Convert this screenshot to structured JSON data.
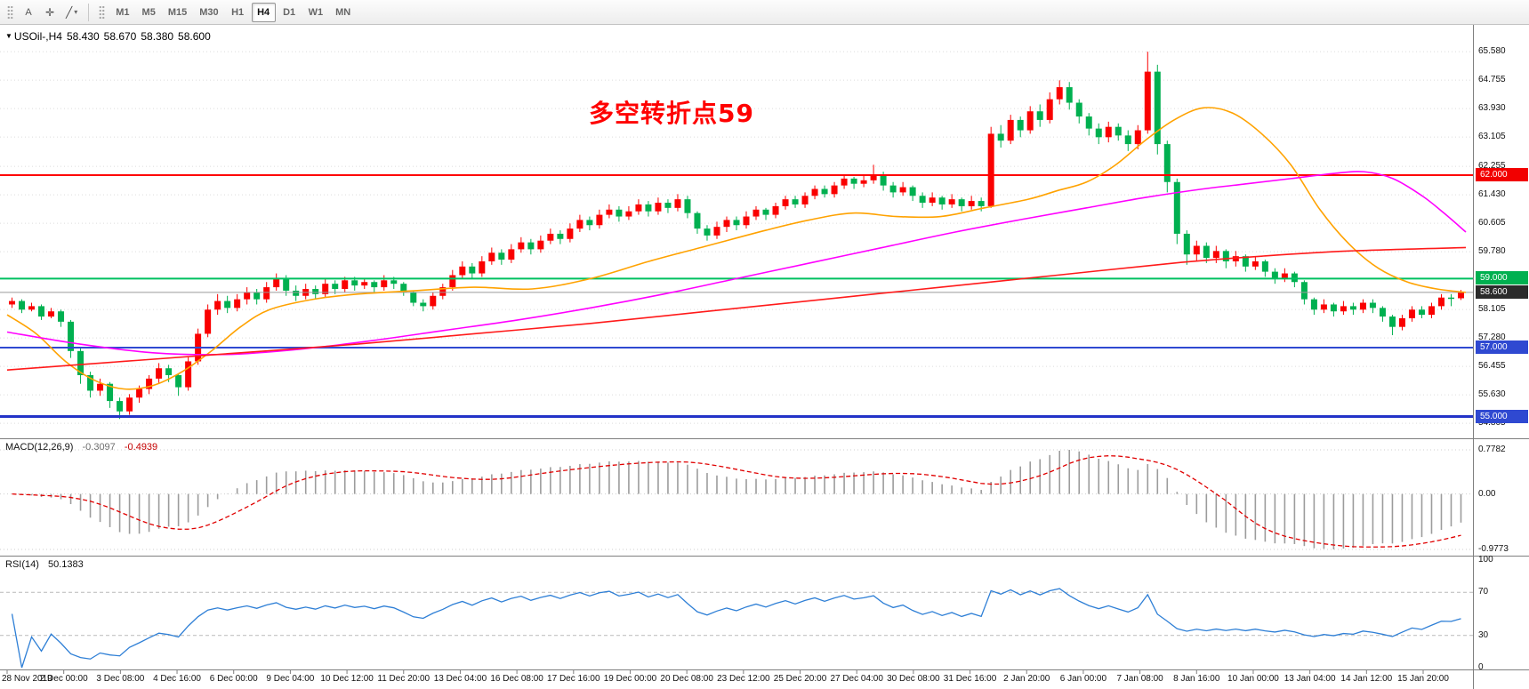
{
  "toolbar": {
    "font_tool_label": "A",
    "active_timeframe": "H4",
    "timeframes": [
      "M1",
      "M5",
      "M15",
      "M30",
      "H1",
      "H4",
      "D1",
      "W1",
      "MN"
    ]
  },
  "chart_data": {
    "type": "candlestick",
    "symbol": "USOil-",
    "timeframe": "H4",
    "header": {
      "symbol": "USOil-,H4",
      "open": "58.430",
      "high": "58.670",
      "low": "58.380",
      "close": "58.600"
    },
    "annotation": {
      "text": "多空转折点59",
      "color": "#ff0000"
    },
    "price_range": {
      "min": 54.55,
      "max": 66.15
    },
    "up_color": "#fa0000",
    "down_color": "#00b050",
    "price_axis_labels": [
      "65.580",
      "64.755",
      "63.930",
      "63.105",
      "62.255",
      "61.430",
      "60.605",
      "59.780",
      "58.105",
      "57.280",
      "56.455",
      "55.630",
      "54.805"
    ],
    "hlines": [
      {
        "price": 62.0,
        "color": "#ff0000",
        "width": 2,
        "badge": "62.000",
        "badge_bg": "#f20000",
        "role": "resistance-line"
      },
      {
        "price": 59.0,
        "color": "#00c060",
        "width": 2,
        "badge": "59.000",
        "badge_bg": "#00b050",
        "role": "pivot-line"
      },
      {
        "price": 58.6,
        "color": "#9a9a9a",
        "width": 1,
        "badge": "58.600",
        "badge_bg": "#2b2b2b",
        "role": "current-price-line"
      },
      {
        "price": 57.0,
        "color": "#2f49d1",
        "width": 2,
        "badge": "57.000",
        "badge_bg": "#2f49d1",
        "role": "support-line"
      },
      {
        "price": 55.0,
        "color": "#2333c8",
        "width": 3,
        "badge": "55.000",
        "badge_bg": "#2f49d1",
        "role": "support-line"
      }
    ],
    "ma_lines": [
      {
        "name": "ma-fast-orange",
        "color": "#ffa200",
        "width": 1.6,
        "points": [
          [
            0,
            57.95
          ],
          [
            0.02,
            57.4
          ],
          [
            0.04,
            56.6
          ],
          [
            0.06,
            56.05
          ],
          [
            0.08,
            55.8
          ],
          [
            0.1,
            55.9
          ],
          [
            0.12,
            56.3
          ],
          [
            0.14,
            56.9
          ],
          [
            0.16,
            57.6
          ],
          [
            0.18,
            58.1
          ],
          [
            0.21,
            58.4
          ],
          [
            0.24,
            58.55
          ],
          [
            0.28,
            58.65
          ],
          [
            0.32,
            58.75
          ],
          [
            0.36,
            58.7
          ],
          [
            0.4,
            59.0
          ],
          [
            0.44,
            59.5
          ],
          [
            0.48,
            59.95
          ],
          [
            0.52,
            60.4
          ],
          [
            0.55,
            60.7
          ],
          [
            0.58,
            60.9
          ],
          [
            0.61,
            60.8
          ],
          [
            0.64,
            60.8
          ],
          [
            0.67,
            61.05
          ],
          [
            0.7,
            61.3
          ],
          [
            0.72,
            61.55
          ],
          [
            0.74,
            61.8
          ],
          [
            0.76,
            62.3
          ],
          [
            0.78,
            63.0
          ],
          [
            0.8,
            63.6
          ],
          [
            0.82,
            63.95
          ],
          [
            0.84,
            63.8
          ],
          [
            0.86,
            63.2
          ],
          [
            0.88,
            62.3
          ],
          [
            0.9,
            61.0
          ],
          [
            0.92,
            60.0
          ],
          [
            0.94,
            59.3
          ],
          [
            0.96,
            58.9
          ],
          [
            0.98,
            58.7
          ],
          [
            1,
            58.6
          ]
        ]
      },
      {
        "name": "ma-mid-magenta",
        "color": "#ff00ff",
        "width": 1.6,
        "points": [
          [
            0,
            57.45
          ],
          [
            0.05,
            57.1
          ],
          [
            0.1,
            56.85
          ],
          [
            0.15,
            56.8
          ],
          [
            0.2,
            56.95
          ],
          [
            0.25,
            57.2
          ],
          [
            0.3,
            57.5
          ],
          [
            0.35,
            57.8
          ],
          [
            0.4,
            58.15
          ],
          [
            0.45,
            58.55
          ],
          [
            0.5,
            59.0
          ],
          [
            0.55,
            59.45
          ],
          [
            0.6,
            59.9
          ],
          [
            0.65,
            60.35
          ],
          [
            0.7,
            60.75
          ],
          [
            0.74,
            61.05
          ],
          [
            0.78,
            61.35
          ],
          [
            0.82,
            61.6
          ],
          [
            0.85,
            61.75
          ],
          [
            0.88,
            61.9
          ],
          [
            0.91,
            62.05
          ],
          [
            0.93,
            62.1
          ],
          [
            0.95,
            61.9
          ],
          [
            0.97,
            61.4
          ],
          [
            0.985,
            60.9
          ],
          [
            1,
            60.35
          ]
        ]
      },
      {
        "name": "ma-slow-red",
        "color": "#ff1a1a",
        "width": 1.6,
        "points": [
          [
            0,
            56.35
          ],
          [
            0.08,
            56.6
          ],
          [
            0.16,
            56.85
          ],
          [
            0.24,
            57.1
          ],
          [
            0.32,
            57.4
          ],
          [
            0.4,
            57.7
          ],
          [
            0.48,
            58.05
          ],
          [
            0.56,
            58.4
          ],
          [
            0.64,
            58.75
          ],
          [
            0.72,
            59.1
          ],
          [
            0.8,
            59.45
          ],
          [
            0.86,
            59.65
          ],
          [
            0.92,
            59.8
          ],
          [
            1,
            59.9
          ]
        ]
      }
    ],
    "candles": [
      [
        58.25,
        58.45,
        58.15,
        58.35
      ],
      [
        58.35,
        58.4,
        58.0,
        58.1
      ],
      [
        58.1,
        58.3,
        58.05,
        58.2
      ],
      [
        58.2,
        58.25,
        57.8,
        57.9
      ],
      [
        57.9,
        58.15,
        57.85,
        58.05
      ],
      [
        58.05,
        58.1,
        57.6,
        57.75
      ],
      [
        57.75,
        57.8,
        56.7,
        56.9
      ],
      [
        56.9,
        57.0,
        55.95,
        56.2
      ],
      [
        56.2,
        56.3,
        55.55,
        55.75
      ],
      [
        55.75,
        56.1,
        55.6,
        55.95
      ],
      [
        55.95,
        56.0,
        55.25,
        55.45
      ],
      [
        55.45,
        55.55,
        54.93,
        55.15
      ],
      [
        55.15,
        55.65,
        55.05,
        55.55
      ],
      [
        55.55,
        55.9,
        55.4,
        55.8
      ],
      [
        55.8,
        56.2,
        55.65,
        56.1
      ],
      [
        56.1,
        56.55,
        55.95,
        56.4
      ],
      [
        56.4,
        56.5,
        56.0,
        56.2
      ],
      [
        56.2,
        56.25,
        55.6,
        55.85
      ],
      [
        55.85,
        56.75,
        55.75,
        56.6
      ],
      [
        56.6,
        57.55,
        56.5,
        57.4
      ],
      [
        57.4,
        58.25,
        57.3,
        58.1
      ],
      [
        58.1,
        58.55,
        57.95,
        58.35
      ],
      [
        58.35,
        58.5,
        58.0,
        58.15
      ],
      [
        58.15,
        58.55,
        58.05,
        58.4
      ],
      [
        58.4,
        58.75,
        58.25,
        58.6
      ],
      [
        58.6,
        58.7,
        58.25,
        58.4
      ],
      [
        58.4,
        58.9,
        58.3,
        58.75
      ],
      [
        58.75,
        59.15,
        58.65,
        59.0
      ],
      [
        59.0,
        59.1,
        58.5,
        58.65
      ],
      [
        58.65,
        58.8,
        58.35,
        58.5
      ],
      [
        58.5,
        58.85,
        58.4,
        58.7
      ],
      [
        58.7,
        58.8,
        58.4,
        58.55
      ],
      [
        58.55,
        59.0,
        58.45,
        58.85
      ],
      [
        58.85,
        58.95,
        58.55,
        58.7
      ],
      [
        58.7,
        59.05,
        58.6,
        58.95
      ],
      [
        58.95,
        59.05,
        58.65,
        58.8
      ],
      [
        58.8,
        59.0,
        58.7,
        58.9
      ],
      [
        58.9,
        58.95,
        58.6,
        58.75
      ],
      [
        58.75,
        59.1,
        58.65,
        58.95
      ],
      [
        58.95,
        59.05,
        58.7,
        58.85
      ],
      [
        58.85,
        58.9,
        58.5,
        58.6
      ],
      [
        58.6,
        58.65,
        58.2,
        58.3
      ],
      [
        58.3,
        58.4,
        58.05,
        58.2
      ],
      [
        58.2,
        58.6,
        58.1,
        58.5
      ],
      [
        58.5,
        58.85,
        58.4,
        58.75
      ],
      [
        58.75,
        59.25,
        58.65,
        59.1
      ],
      [
        59.1,
        59.5,
        59.0,
        59.35
      ],
      [
        59.35,
        59.45,
        59.0,
        59.15
      ],
      [
        59.15,
        59.65,
        59.05,
        59.5
      ],
      [
        59.5,
        59.9,
        59.4,
        59.75
      ],
      [
        59.75,
        59.85,
        59.4,
        59.55
      ],
      [
        59.55,
        60.0,
        59.45,
        59.85
      ],
      [
        59.85,
        60.2,
        59.75,
        60.05
      ],
      [
        60.05,
        60.15,
        59.7,
        59.85
      ],
      [
        59.85,
        60.25,
        59.75,
        60.1
      ],
      [
        60.1,
        60.45,
        60.0,
        60.3
      ],
      [
        60.3,
        60.4,
        60.0,
        60.15
      ],
      [
        60.15,
        60.6,
        60.05,
        60.45
      ],
      [
        60.45,
        60.85,
        60.35,
        60.7
      ],
      [
        60.7,
        60.8,
        60.4,
        60.55
      ],
      [
        60.55,
        61.0,
        60.45,
        60.85
      ],
      [
        60.85,
        61.15,
        60.75,
        61.0
      ],
      [
        61.0,
        61.1,
        60.65,
        60.8
      ],
      [
        60.8,
        61.1,
        60.7,
        60.95
      ],
      [
        60.95,
        61.3,
        60.85,
        61.15
      ],
      [
        61.15,
        61.25,
        60.8,
        60.95
      ],
      [
        60.95,
        61.35,
        60.85,
        61.2
      ],
      [
        61.2,
        61.3,
        60.9,
        61.05
      ],
      [
        61.05,
        61.45,
        60.95,
        61.3
      ],
      [
        61.3,
        61.4,
        60.75,
        60.9
      ],
      [
        60.9,
        60.95,
        60.3,
        60.45
      ],
      [
        60.45,
        60.55,
        60.1,
        60.25
      ],
      [
        60.25,
        60.65,
        60.15,
        60.5
      ],
      [
        60.5,
        60.8,
        60.35,
        60.7
      ],
      [
        60.7,
        60.8,
        60.4,
        60.55
      ],
      [
        60.55,
        60.95,
        60.45,
        60.8
      ],
      [
        60.8,
        61.1,
        60.7,
        61.0
      ],
      [
        61.0,
        61.05,
        60.7,
        60.85
      ],
      [
        60.85,
        61.2,
        60.75,
        61.1
      ],
      [
        61.1,
        61.4,
        61.0,
        61.3
      ],
      [
        61.3,
        61.4,
        61.05,
        61.15
      ],
      [
        61.15,
        61.5,
        61.05,
        61.4
      ],
      [
        61.4,
        61.7,
        61.3,
        61.6
      ],
      [
        61.6,
        61.7,
        61.35,
        61.45
      ],
      [
        61.45,
        61.8,
        61.35,
        61.7
      ],
      [
        61.7,
        62.0,
        61.6,
        61.9
      ],
      [
        61.9,
        61.95,
        61.6,
        61.75
      ],
      [
        61.75,
        62.0,
        61.65,
        61.85
      ],
      [
        61.85,
        62.3,
        61.75,
        62.0
      ],
      [
        62.0,
        62.1,
        61.55,
        61.7
      ],
      [
        61.7,
        61.8,
        61.35,
        61.5
      ],
      [
        61.5,
        61.8,
        61.4,
        61.65
      ],
      [
        61.65,
        61.7,
        61.25,
        61.4
      ],
      [
        61.4,
        61.5,
        61.05,
        61.2
      ],
      [
        61.2,
        61.5,
        61.1,
        61.35
      ],
      [
        61.35,
        61.4,
        61.0,
        61.15
      ],
      [
        61.15,
        61.45,
        61.05,
        61.3
      ],
      [
        61.3,
        61.35,
        60.95,
        61.1
      ],
      [
        61.1,
        61.4,
        61.0,
        61.25
      ],
      [
        61.25,
        61.35,
        60.95,
        61.1
      ],
      [
        61.1,
        63.4,
        61.05,
        63.2
      ],
      [
        63.2,
        63.45,
        62.8,
        63.0
      ],
      [
        63.0,
        63.75,
        62.9,
        63.6
      ],
      [
        63.6,
        63.7,
        63.1,
        63.3
      ],
      [
        63.3,
        64.0,
        63.2,
        63.85
      ],
      [
        63.85,
        64.05,
        63.4,
        63.6
      ],
      [
        63.6,
        64.4,
        63.5,
        64.2
      ],
      [
        64.2,
        64.75,
        64.05,
        64.55
      ],
      [
        64.55,
        64.7,
        63.9,
        64.1
      ],
      [
        64.1,
        64.2,
        63.5,
        63.7
      ],
      [
        63.7,
        63.8,
        63.15,
        63.35
      ],
      [
        63.35,
        63.5,
        62.9,
        63.1
      ],
      [
        63.1,
        63.55,
        62.95,
        63.4
      ],
      [
        63.4,
        63.5,
        63.0,
        63.15
      ],
      [
        63.15,
        63.3,
        62.7,
        62.9
      ],
      [
        62.9,
        63.45,
        62.75,
        63.3
      ],
      [
        63.3,
        65.58,
        63.2,
        65.0
      ],
      [
        65.0,
        65.2,
        62.6,
        62.9
      ],
      [
        62.9,
        63.0,
        61.5,
        61.8
      ],
      [
        61.8,
        61.9,
        60.0,
        60.3
      ],
      [
        60.3,
        60.4,
        59.4,
        59.7
      ],
      [
        59.7,
        60.1,
        59.5,
        59.95
      ],
      [
        59.95,
        60.05,
        59.45,
        59.6
      ],
      [
        59.6,
        59.95,
        59.45,
        59.8
      ],
      [
        59.8,
        59.85,
        59.3,
        59.5
      ],
      [
        59.5,
        59.8,
        59.35,
        59.65
      ],
      [
        59.65,
        59.7,
        59.2,
        59.35
      ],
      [
        59.35,
        59.65,
        59.25,
        59.5
      ],
      [
        59.5,
        59.55,
        59.05,
        59.2
      ],
      [
        59.2,
        59.3,
        58.85,
        59.0
      ],
      [
        59.0,
        59.3,
        58.9,
        59.15
      ],
      [
        59.15,
        59.2,
        58.75,
        58.9
      ],
      [
        58.9,
        58.95,
        58.25,
        58.4
      ],
      [
        58.4,
        58.45,
        57.95,
        58.1
      ],
      [
        58.1,
        58.4,
        58.0,
        58.25
      ],
      [
        58.25,
        58.3,
        57.9,
        58.05
      ],
      [
        58.05,
        58.35,
        57.95,
        58.2
      ],
      [
        58.2,
        58.3,
        57.95,
        58.1
      ],
      [
        58.1,
        58.4,
        58.0,
        58.3
      ],
      [
        58.3,
        58.4,
        58.0,
        58.15
      ],
      [
        58.15,
        58.2,
        57.75,
        57.9
      ],
      [
        57.9,
        57.95,
        57.36,
        57.6
      ],
      [
        57.6,
        57.95,
        57.5,
        57.85
      ],
      [
        57.85,
        58.2,
        57.75,
        58.1
      ],
      [
        58.1,
        58.2,
        57.85,
        57.95
      ],
      [
        57.95,
        58.3,
        57.85,
        58.2
      ],
      [
        58.2,
        58.55,
        58.1,
        58.45
      ],
      [
        58.45,
        58.55,
        58.2,
        58.43
      ],
      [
        58.43,
        58.67,
        58.38,
        58.6
      ]
    ],
    "time_labels": [
      "28 Nov 2019",
      "2 Dec 00:00",
      "3 Dec 08:00",
      "4 Dec 16:00",
      "6 Dec 00:00",
      "9 Dec 04:00",
      "10 Dec 12:00",
      "11 Dec 20:00",
      "13 Dec 04:00",
      "16 Dec 08:00",
      "17 Dec 16:00",
      "19 Dec 00:00",
      "20 Dec 08:00",
      "23 Dec 12:00",
      "25 Dec 20:00",
      "27 Dec 04:00",
      "30 Dec 08:00",
      "31 Dec 16:00",
      "2 Jan 20:00",
      "6 Jan 00:00",
      "7 Jan 08:00",
      "8 Jan 16:00",
      "10 Jan 00:00",
      "13 Jan 04:00",
      "14 Jan 12:00",
      "15 Jan 20:00"
    ],
    "indicators": {
      "macd": {
        "label": "MACD(12,26,9)",
        "value1": "-0.3097",
        "value2": "-0.4939",
        "fast": 12,
        "slow": 26,
        "signal": 9,
        "axis_max": 0.7782,
        "axis_min": -0.9773,
        "axis_labels": [
          "0.7782",
          "0.00",
          "-0.9773"
        ],
        "histogram_color": "#9c9c9c",
        "signal_color": "#e00000"
      },
      "rsi": {
        "label": "RSI(14)",
        "value": "50.1383",
        "period": 14,
        "levels": [
          70,
          30
        ],
        "axis_labels": [
          "100",
          "70",
          "30",
          "0"
        ],
        "line_color": "#2e7fd6"
      }
    }
  }
}
